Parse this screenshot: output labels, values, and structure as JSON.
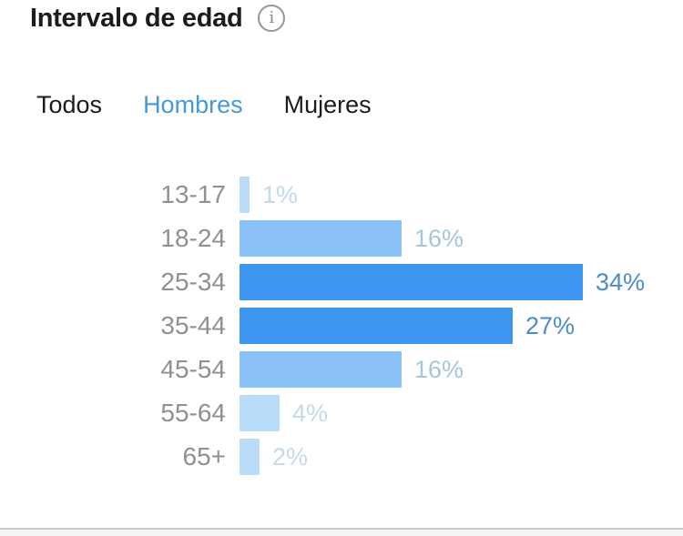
{
  "header": {
    "title": "Intervalo de edad",
    "info_icon_glyph": "i"
  },
  "tabs": [
    {
      "label": "Todos",
      "active": false
    },
    {
      "label": "Hombres",
      "active": true
    },
    {
      "label": "Mujeres",
      "active": false
    }
  ],
  "chart_data": {
    "type": "bar",
    "orientation": "horizontal",
    "title": "Intervalo de edad",
    "selected_filter": "Hombres",
    "categories": [
      "13-17",
      "18-24",
      "25-34",
      "35-44",
      "45-54",
      "55-64",
      "65+"
    ],
    "values": [
      1,
      16,
      34,
      27,
      16,
      4,
      2
    ],
    "value_labels": [
      "1%",
      "16%",
      "34%",
      "27%",
      "16%",
      "4%",
      "2%"
    ],
    "emphasis": [
      "low",
      "medium",
      "high",
      "high",
      "medium",
      "low",
      "low"
    ],
    "xlim": [
      0,
      34
    ],
    "grid": false,
    "legend": false,
    "unit": "percent"
  },
  "colors": {
    "bg": "#ffffff",
    "title_color": "#1c1c1c",
    "tab_inactive": "#1c1c1e",
    "tab_active": "#4499d6",
    "category_color": "#8e9094",
    "bar_high": "#3d97f0",
    "bar_medium": "#8ac2f8",
    "bar_low": "#b9dcf9",
    "pct_high": "#4a8cce",
    "pct_medium": "#a6c6da",
    "pct_low": "#c3dbe8"
  }
}
